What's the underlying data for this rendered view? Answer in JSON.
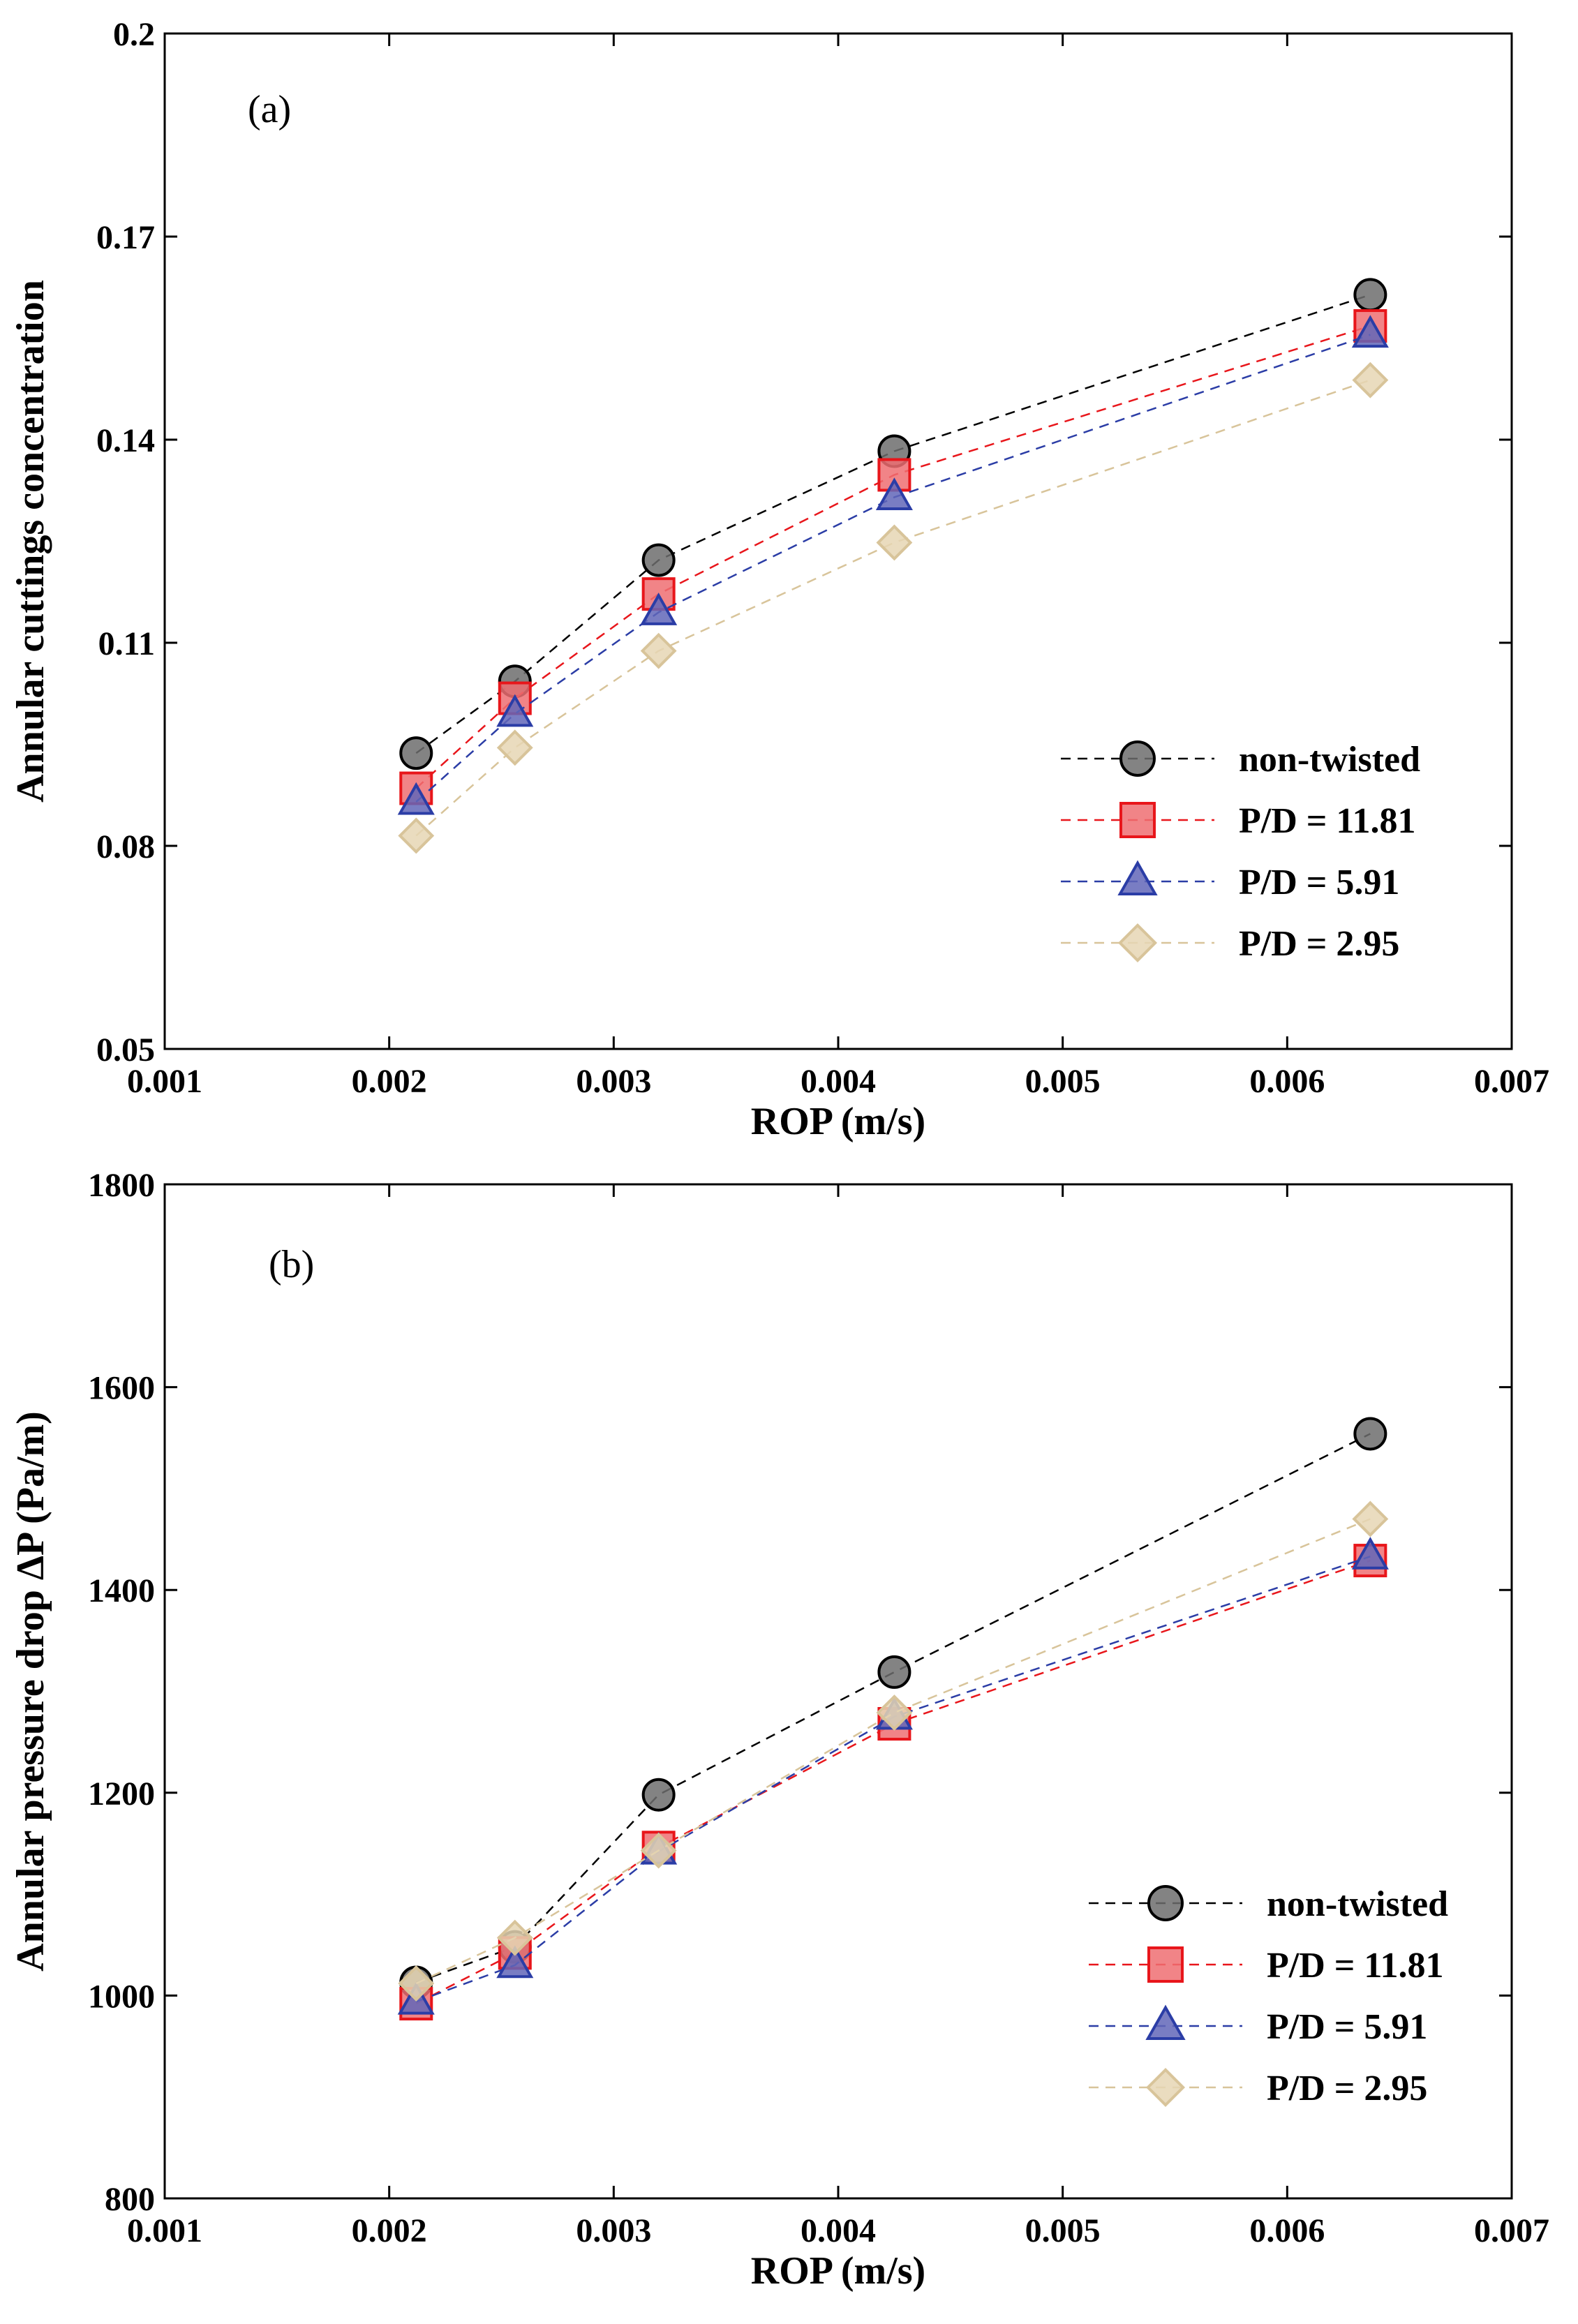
{
  "chart_data": [
    {
      "type": "line",
      "panel_label": "(a)",
      "xlabel": "ROP (m/s)",
      "ylabel": "Annular cuttings concentration",
      "xlim": [
        0.001,
        0.007
      ],
      "ylim": [
        0.05,
        0.2
      ],
      "xticks": [
        "0.001",
        "0.002",
        "0.003",
        "0.004",
        "0.005",
        "0.006",
        "0.007"
      ],
      "yticks": [
        "0.05",
        "0.08",
        "0.11",
        "0.14",
        "0.17",
        "0.2"
      ],
      "legend_position": "lower-right",
      "x": [
        0.00212,
        0.00256,
        0.0032,
        0.00425,
        0.00637
      ],
      "series": [
        {
          "name": "non-twisted",
          "marker": "circle",
          "color": "#000000",
          "fill": "#6d6d6d",
          "values": [
            0.0937,
            0.1043,
            0.1222,
            0.1383,
            0.1614
          ]
        },
        {
          "name": "P/D = 11.81",
          "marker": "square",
          "color": "#e8161b",
          "fill": "#ee6e72",
          "values": [
            0.0885,
            0.1018,
            0.1172,
            0.1348,
            0.1568
          ]
        },
        {
          "name": "P/D = 5.91",
          "marker": "triangle",
          "color": "#2b3da6",
          "fill": "#6266b8",
          "values": [
            0.0865,
            0.0995,
            0.1145,
            0.1315,
            0.1555
          ]
        },
        {
          "name": "P/D = 2.95",
          "marker": "diamond",
          "color": "#d8c49a",
          "fill": "#e6d6b4",
          "values": [
            0.0815,
            0.0945,
            0.1088,
            0.1248,
            0.1488
          ]
        }
      ]
    },
    {
      "type": "line",
      "panel_label": "(b)",
      "xlabel": "ROP (m/s)",
      "ylabel": "Annular pressure drop ΔP (Pa/m)",
      "xlim": [
        0.001,
        0.007
      ],
      "ylim": [
        800,
        1800
      ],
      "xticks": [
        "0.001",
        "0.002",
        "0.003",
        "0.004",
        "0.005",
        "0.006",
        "0.007"
      ],
      "yticks": [
        "800",
        "1000",
        "1200",
        "1400",
        "1600",
        "1800"
      ],
      "legend_position": "lower-right",
      "x": [
        0.00212,
        0.00256,
        0.0032,
        0.00425,
        0.00637
      ],
      "series": [
        {
          "name": "non-twisted",
          "marker": "circle",
          "color": "#000000",
          "fill": "#6d6d6d",
          "values": [
            1013,
            1048,
            1198,
            1319,
            1554
          ]
        },
        {
          "name": "P/D = 11.81",
          "marker": "square",
          "color": "#e8161b",
          "fill": "#ee6e72",
          "values": [
            992,
            1042,
            1146,
            1268,
            1429
          ]
        },
        {
          "name": "P/D = 5.91",
          "marker": "triangle",
          "color": "#2b3da6",
          "fill": "#6266b8",
          "values": [
            994,
            1030,
            1142,
            1275,
            1433
          ]
        },
        {
          "name": "P/D = 2.95",
          "marker": "diamond",
          "color": "#d8c49a",
          "fill": "#e6d6b4",
          "values": [
            1012,
            1057,
            1143,
            1279,
            1470
          ]
        }
      ]
    }
  ]
}
